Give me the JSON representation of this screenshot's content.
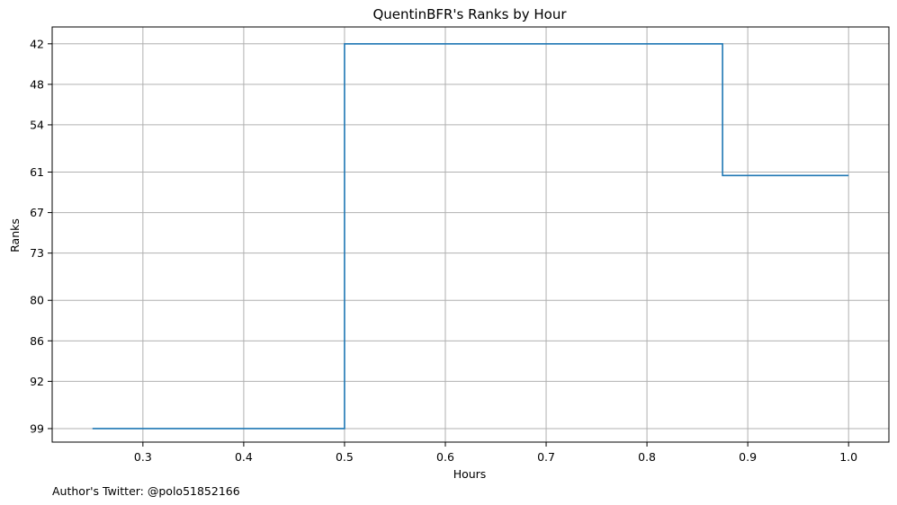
{
  "chart_data": {
    "type": "line",
    "drawstyle": "steps-post",
    "title": "QuentinBFR's Ranks by Hour",
    "xlabel": "Hours",
    "ylabel": "Ranks",
    "xlim": [
      0.21,
      1.04
    ],
    "ylim": [
      101,
      39.5
    ],
    "y_inverted": true,
    "grid": true,
    "xticks": [
      0.3,
      0.4,
      0.5,
      0.6,
      0.7,
      0.8,
      0.9,
      1.0
    ],
    "xtick_labels": [
      "0.3",
      "0.4",
      "0.5",
      "0.6",
      "0.7",
      "0.8",
      "0.9",
      "1.0"
    ],
    "yticks": [
      42,
      48,
      54,
      61,
      67,
      73,
      80,
      86,
      92,
      99
    ],
    "ytick_labels": [
      "42",
      "48",
      "54",
      "61",
      "67",
      "73",
      "80",
      "86",
      "92",
      "99"
    ],
    "series": [
      {
        "color": "#1f77b4",
        "x": [
          0.25,
          0.5,
          0.875,
          1.0
        ],
        "y": [
          99,
          42,
          61.5,
          61.5
        ]
      }
    ]
  },
  "footer": {
    "note": "Author's Twitter: @polo51852166"
  }
}
